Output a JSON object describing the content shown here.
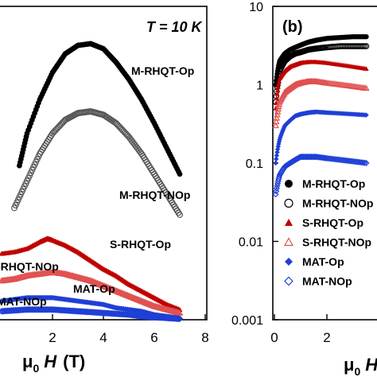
{
  "chart_data": [
    {
      "type": "scatter",
      "panel": "left (cropped)",
      "annotation": "T = 10 K",
      "xlabel_symbol": "μ",
      "xlabel_sub": "0",
      "xlabel_var": "H",
      "xlabel_unit": "(T)",
      "xlim": [
        0,
        8
      ],
      "xticks": [
        "2",
        "4",
        "6",
        "8"
      ],
      "series": [
        {
          "name": "M-RHQT-Op",
          "color": "#000000",
          "marker": "circle-filled",
          "x": [
            0.7,
            1.0,
            1.5,
            2.0,
            2.5,
            3.0,
            3.5,
            4.0,
            4.5,
            5.0,
            5.5,
            6.0,
            6.5,
            7.0
          ],
          "y": [
            91,
            110,
            130,
            146,
            157,
            162,
            163,
            160,
            152,
            142,
            130,
            116,
            101,
            86
          ]
        },
        {
          "name": "M-RHQT-NOp",
          "color": "#555555",
          "marker": "circle-open",
          "x": [
            0.5,
            1.0,
            1.5,
            2.0,
            2.5,
            3.0,
            3.5,
            4.0,
            4.5,
            5.0,
            5.5,
            6.0,
            6.5,
            7.0
          ],
          "y": [
            66,
            82,
            98,
            110,
            118,
            122,
            123,
            121,
            116,
            108,
            98,
            86,
            74,
            62
          ]
        },
        {
          "name": "S-RHQT-Op",
          "color": "#c00000",
          "marker": "triangle-filled",
          "x": [
            0.0,
            0.5,
            1.0,
            1.5,
            1.8,
            2.0,
            2.5,
            3.0,
            3.5,
            4.0,
            4.5,
            5.0,
            5.5,
            6.0,
            6.5,
            7.0
          ],
          "y": [
            39,
            40,
            42,
            46,
            48,
            47,
            44,
            40,
            35,
            30,
            26,
            21,
            17,
            13,
            9,
            6
          ]
        },
        {
          "name": "S-RHQT-NOp",
          "color": "#e05050",
          "marker": "triangle-open",
          "x": [
            0.0,
            0.5,
            1.0,
            1.5,
            2.0,
            2.5,
            3.0,
            3.5,
            4.0,
            4.5,
            5.0,
            5.5,
            6.0,
            6.5,
            7.0
          ],
          "y": [
            23,
            24,
            26,
            27,
            28,
            27,
            25,
            23,
            20,
            17,
            14,
            11,
            8,
            6,
            4
          ]
        },
        {
          "name": "MAT-Op",
          "color": "#1f3fd6",
          "marker": "diamond-filled",
          "x": [
            0.0,
            0.5,
            1.0,
            1.5,
            2.0,
            2.5,
            3.0,
            3.5,
            4.0,
            4.5,
            5.0,
            5.5,
            6.0,
            6.5,
            7.0
          ],
          "y": [
            11,
            12,
            13,
            13,
            13,
            12,
            11,
            10,
            9,
            7,
            6,
            5,
            3,
            2,
            1
          ]
        },
        {
          "name": "MAT-NOp",
          "color": "#1f3fd6",
          "marker": "diamond-open",
          "x": [
            0.0,
            0.5,
            1.0,
            1.5,
            2.0,
            2.5,
            3.0,
            3.5,
            4.0,
            4.5,
            5.0,
            5.5,
            6.0,
            6.5,
            7.0
          ],
          "y": [
            5,
            5.5,
            6,
            6,
            6,
            5.5,
            5,
            4.5,
            4,
            3.5,
            3,
            2,
            1.5,
            1,
            0.5
          ]
        }
      ],
      "labels": [
        {
          "text": "M-RHQT-Op"
        },
        {
          "text": "M-RHQT-NOp"
        },
        {
          "text": "S-RHQT-Op"
        },
        {
          "text": "-RHQT-NOp"
        },
        {
          "text": "MAT-Op"
        },
        {
          "text": "MAT-NOp"
        }
      ]
    },
    {
      "type": "scatter",
      "panel": "right (cropped)",
      "panel_label": "(b)",
      "yscale": "log",
      "ylim": [
        0.001,
        10
      ],
      "yticks": [
        "0.001",
        "0.01",
        "0.1",
        "1",
        "10"
      ],
      "xlim": [
        0,
        8
      ],
      "xticks": [
        "0",
        "2"
      ],
      "xlabel_symbol": "μ",
      "xlabel_sub": "0",
      "xlabel_var": "H",
      "legend_position": "bottom-left",
      "series": [
        {
          "name": "M-RHQT-Op",
          "color": "#000000",
          "marker": "circle-filled",
          "x": [
            0.05,
            0.2,
            0.4,
            0.6,
            0.8,
            1.0,
            1.3,
            1.6,
            2.0,
            2.5,
            3.0,
            3.5
          ],
          "y": [
            1.0,
            2.0,
            2.5,
            2.8,
            3.0,
            3.2,
            3.5,
            3.7,
            3.9,
            4.0,
            4.1,
            4.1
          ]
        },
        {
          "name": "M-RHQT-NOp",
          "color": "#000000",
          "marker": "circle-open",
          "x": [
            0.05,
            0.2,
            0.4,
            0.6,
            0.8,
            1.0,
            1.3,
            1.6,
            2.0,
            2.5,
            3.0,
            3.5
          ],
          "y": [
            0.6,
            1.5,
            2.0,
            2.3,
            2.5,
            2.6,
            2.8,
            2.9,
            3.0,
            3.1,
            3.1,
            3.1
          ]
        },
        {
          "name": "S-RHQT-Op",
          "color": "#c00000",
          "marker": "triangle-filled",
          "x": [
            0.05,
            0.2,
            0.4,
            0.6,
            0.8,
            1.0,
            1.3,
            1.6,
            2.0,
            2.5,
            3.0,
            3.5
          ],
          "y": [
            0.5,
            1.2,
            1.5,
            1.7,
            1.8,
            1.9,
            1.95,
            1.95,
            1.9,
            1.8,
            1.7,
            1.6
          ]
        },
        {
          "name": "S-RHQT-NOp",
          "color": "#e05050",
          "marker": "triangle-open",
          "x": [
            0.05,
            0.2,
            0.4,
            0.6,
            0.8,
            1.0,
            1.3,
            1.6,
            2.0,
            2.5,
            3.0,
            3.5
          ],
          "y": [
            0.3,
            0.6,
            0.8,
            0.9,
            1.0,
            1.05,
            1.1,
            1.1,
            1.05,
            1.0,
            0.95,
            0.9
          ]
        },
        {
          "name": "MAT-Op",
          "color": "#1f3fd6",
          "marker": "diamond-filled",
          "x": [
            0.05,
            0.2,
            0.4,
            0.6,
            0.8,
            1.0,
            1.3,
            1.6,
            2.0,
            2.5,
            3.0,
            3.5
          ],
          "y": [
            0.1,
            0.2,
            0.3,
            0.35,
            0.4,
            0.42,
            0.44,
            0.45,
            0.44,
            0.43,
            0.42,
            0.41
          ]
        },
        {
          "name": "MAT-NOp",
          "color": "#1f3fd6",
          "marker": "diamond-open",
          "x": [
            0.05,
            0.2,
            0.4,
            0.6,
            0.8,
            1.0,
            1.3,
            1.6,
            2.0,
            2.5,
            3.0,
            3.5
          ],
          "y": [
            0.04,
            0.07,
            0.09,
            0.1,
            0.11,
            0.12,
            0.12,
            0.12,
            0.115,
            0.11,
            0.105,
            0.1
          ]
        }
      ],
      "legend": [
        {
          "label": "M-RHQT-Op",
          "marker": "circle-filled",
          "color": "#000000"
        },
        {
          "label": "M-RHQT-NOp",
          "marker": "circle-open",
          "color": "#000000"
        },
        {
          "label": "S-RHQT-Op",
          "marker": "triangle-filled",
          "color": "#c00000"
        },
        {
          "label": "S-RHQT-NOp",
          "marker": "triangle-open",
          "color": "#e05050"
        },
        {
          "label": "MAT-Op",
          "marker": "diamond-filled",
          "color": "#1f3fd6"
        },
        {
          "label": "MAT-NOp",
          "marker": "diamond-open",
          "color": "#1f3fd6"
        }
      ]
    }
  ]
}
